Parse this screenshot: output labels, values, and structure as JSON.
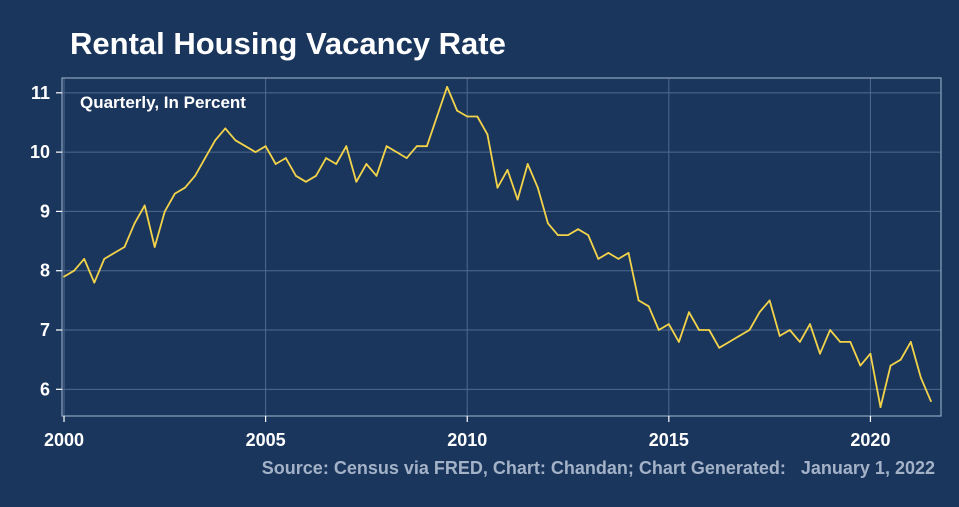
{
  "chart_data": {
    "type": "line",
    "title": "Rental Housing Vacancy Rate",
    "subtitle": "Quarterly, In Percent",
    "caption": "Source: Census via FRED, Chart: Chandan; Chart Generated:   January 1, 2022",
    "xlabel": "",
    "ylabel": "",
    "xlim": [
      1999.95,
      2021.75
    ],
    "ylim": [
      5.55,
      11.25
    ],
    "x_ticks": [
      "2000",
      "2005",
      "2010",
      "2015",
      "2020"
    ],
    "y_ticks": [
      "6",
      "7",
      "8",
      "9",
      "10",
      "11"
    ],
    "grid": true,
    "legend": "none",
    "x_start": "2000 Q1",
    "frequency": "quarterly",
    "series": [
      {
        "color": "#f2d34a",
        "values": [
          7.9,
          8.0,
          8.2,
          7.8,
          8.2,
          8.3,
          8.4,
          8.8,
          9.1,
          8.4,
          9.0,
          9.3,
          9.4,
          9.6,
          9.9,
          10.2,
          10.4,
          10.2,
          10.1,
          10.0,
          10.1,
          9.8,
          9.9,
          9.6,
          9.5,
          9.6,
          9.9,
          9.8,
          10.1,
          9.5,
          9.8,
          9.6,
          10.1,
          10.0,
          9.9,
          10.1,
          10.1,
          10.6,
          11.1,
          10.7,
          10.6,
          10.6,
          10.3,
          9.4,
          9.7,
          9.2,
          9.8,
          9.4,
          8.8,
          8.6,
          8.6,
          8.7,
          8.6,
          8.2,
          8.3,
          8.2,
          8.3,
          7.5,
          7.4,
          7.0,
          7.1,
          6.8,
          7.3,
          7.0,
          7.0,
          6.7,
          6.8,
          6.9,
          7.0,
          7.3,
          7.5,
          6.9,
          7.0,
          6.8,
          7.1,
          6.6,
          7.0,
          6.8,
          6.8,
          6.4,
          6.6,
          5.7,
          6.4,
          6.5,
          6.8,
          6.2,
          5.8
        ]
      }
    ]
  },
  "colors": {
    "background": "#1b365d",
    "line": "#f2d34a",
    "grid": "#4f6a8e",
    "caption": "#a3b2c7"
  }
}
